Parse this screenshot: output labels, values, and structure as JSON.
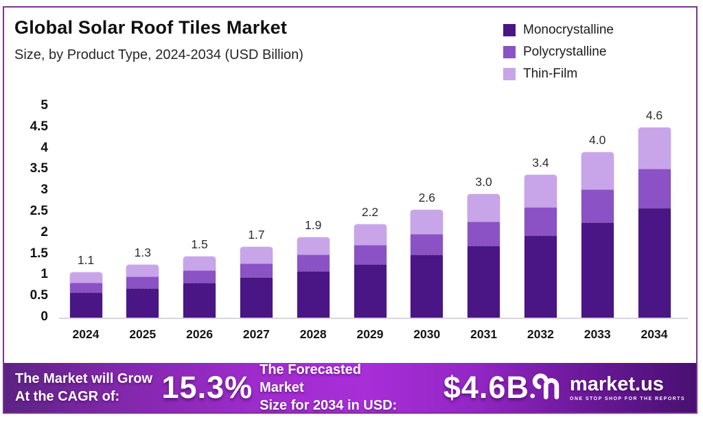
{
  "header": {
    "title": "Global Solar Roof Tiles Market",
    "subtitle": "Size, by Product Type, 2024-2034 (USD Billion)"
  },
  "frame_border_color": "#7b3294",
  "chart_data": {
    "type": "bar",
    "stacked": true,
    "title": "Global Solar Roof Tiles Market Size, by Product Type, 2024-2034 (USD Billion)",
    "categories": [
      "2024",
      "2025",
      "2026",
      "2027",
      "2028",
      "2029",
      "2030",
      "2031",
      "2032",
      "2033",
      "2034"
    ],
    "series": [
      {
        "name": "Monocrystalline",
        "color": "#4a1685",
        "values": [
          0.6,
          0.7,
          0.82,
          0.95,
          1.1,
          1.27,
          1.5,
          1.7,
          1.95,
          2.25,
          2.6
        ]
      },
      {
        "name": "Polycrystalline",
        "color": "#8a52c5",
        "values": [
          0.22,
          0.27,
          0.3,
          0.34,
          0.4,
          0.45,
          0.48,
          0.58,
          0.66,
          0.78,
          0.92
        ]
      },
      {
        "name": "Thin-Film",
        "color": "#c8a5e8",
        "values": [
          0.25,
          0.28,
          0.32,
          0.38,
          0.4,
          0.48,
          0.57,
          0.65,
          0.77,
          0.88,
          0.98
        ]
      }
    ],
    "totals_labels": [
      "1.1",
      "1.3",
      "1.5",
      "1.7",
      "1.9",
      "2.2",
      "2.6",
      "3.0",
      "3.4",
      "4.0",
      "4.6"
    ],
    "yticks": [
      "0",
      "0.5",
      "1",
      "1.5",
      "2",
      "2.5",
      "3",
      "3.5",
      "4",
      "4.5",
      "5"
    ],
    "ylim": [
      0,
      5
    ],
    "xlabel": "",
    "ylabel": "",
    "grid": false,
    "legend_position": "top-right"
  },
  "banner": {
    "cagr_intro_line1": "The Market will Grow",
    "cagr_intro_line2": "At the CAGR of:",
    "cagr_value": "15.3%",
    "forecast_line1": "The Forecasted Market",
    "forecast_line2": "Size for 2034 in USD:",
    "forecast_value": "$4.6B",
    "logo_text": "market.us",
    "logo_tagline": "ONE STOP SHOP FOR THE REPORTS",
    "gradient_left": "#5c2383",
    "gradient_mid": "#a82ed8",
    "gradient_right": "#481071"
  }
}
